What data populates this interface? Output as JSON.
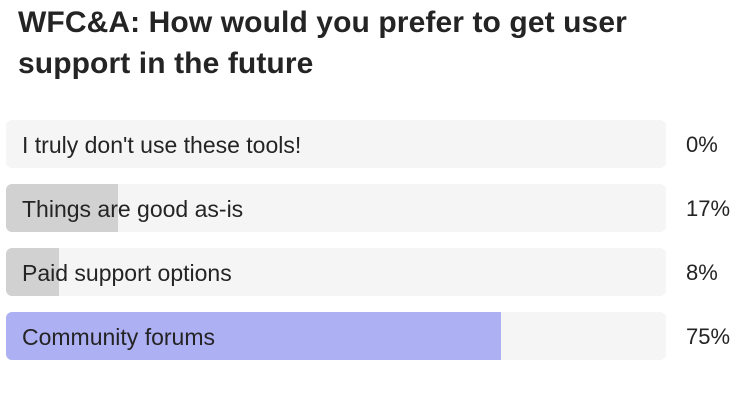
{
  "poll": {
    "title": "WFC&A: How would you prefer to get user support in the future",
    "options": [
      {
        "label": "I truly don't use these tools!",
        "percent_label": "0%",
        "share": 0.0,
        "leading": false
      },
      {
        "label": "Things are good as-is",
        "percent_label": "17%",
        "share": 0.17,
        "leading": false
      },
      {
        "label": "Paid support options",
        "percent_label": "8%",
        "share": 0.08,
        "leading": false
      },
      {
        "label": "Community forums",
        "percent_label": "75%",
        "share": 0.75,
        "leading": true
      }
    ],
    "colors": {
      "track": "#f5f5f5",
      "fill": "#d1d1d1",
      "leading_fill": "#aeb0f4",
      "text": "#242424"
    }
  }
}
